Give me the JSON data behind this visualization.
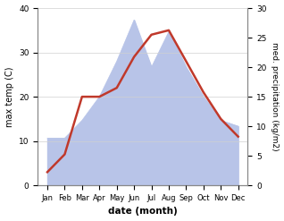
{
  "months": [
    "Jan",
    "Feb",
    "Mar",
    "Apr",
    "May",
    "Jun",
    "Jul",
    "Aug",
    "Sep",
    "Oct",
    "Nov",
    "Dec"
  ],
  "temperature": [
    3,
    7,
    20,
    20,
    22,
    29,
    34,
    35,
    28,
    21,
    15,
    11
  ],
  "precipitation": [
    8,
    8,
    11,
    15,
    21,
    28,
    20,
    26,
    20,
    15,
    11,
    10
  ],
  "temp_color": "#c0392b",
  "precip_fill_color": "#b8c4e8",
  "left_ylim": [
    0,
    40
  ],
  "right_ylim": [
    0,
    30
  ],
  "left_yticks": [
    0,
    10,
    20,
    30,
    40
  ],
  "right_yticks": [
    0,
    5,
    10,
    15,
    20,
    25,
    30
  ],
  "xlabel": "date (month)",
  "ylabel_left": "max temp (C)",
  "ylabel_right": "med. precipitation (kg/m2)",
  "background_color": "#ffffff",
  "grid_color": "#d0d0d0"
}
